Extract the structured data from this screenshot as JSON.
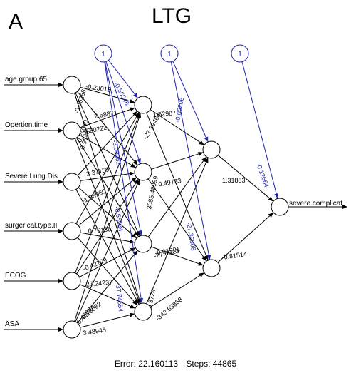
{
  "panel_label": "A",
  "title": "LTG",
  "inputs": [
    "age.group.65",
    "Opertion.time",
    "Severe.Lung.Dis",
    "surgerical.type.II",
    "ECOG",
    "ASA"
  ],
  "output": "severe.complicat",
  "bias_label": "1",
  "input_to_hidden1_weights": [
    "-0.23018",
    "2.58871",
    "0.60222",
    "2.37159",
    "-1.96960",
    "0.70136",
    "-0.42209",
    "-27.24237",
    "0.46098",
    "0.16082",
    "3.48945",
    "-0.46268",
    "0.24040",
    "0.96461"
  ],
  "bias_to_hidden1_weights": [
    "-0.56046",
    "-3.03952",
    "-0.55584",
    "37.74554"
  ],
  "hidden1_to_hidden2_weights": [
    "1.52987",
    "-27.39464",
    "-0.49733",
    "3085.48999",
    "-0.01901",
    "-27.6323",
    "-0.3724",
    "-343.63858"
  ],
  "bias_to_hidden2_weights": [
    "-0.06206",
    "-27.36808"
  ],
  "hidden2_to_output_weights": [
    "1.31883",
    "-0.81514"
  ],
  "bias_to_output_weight": "-0.12664",
  "footer": {
    "error": "Error: 22.160113",
    "steps": "Steps: 44865"
  },
  "colors": {
    "network": "#000000",
    "bias": "#1f24a8"
  }
}
